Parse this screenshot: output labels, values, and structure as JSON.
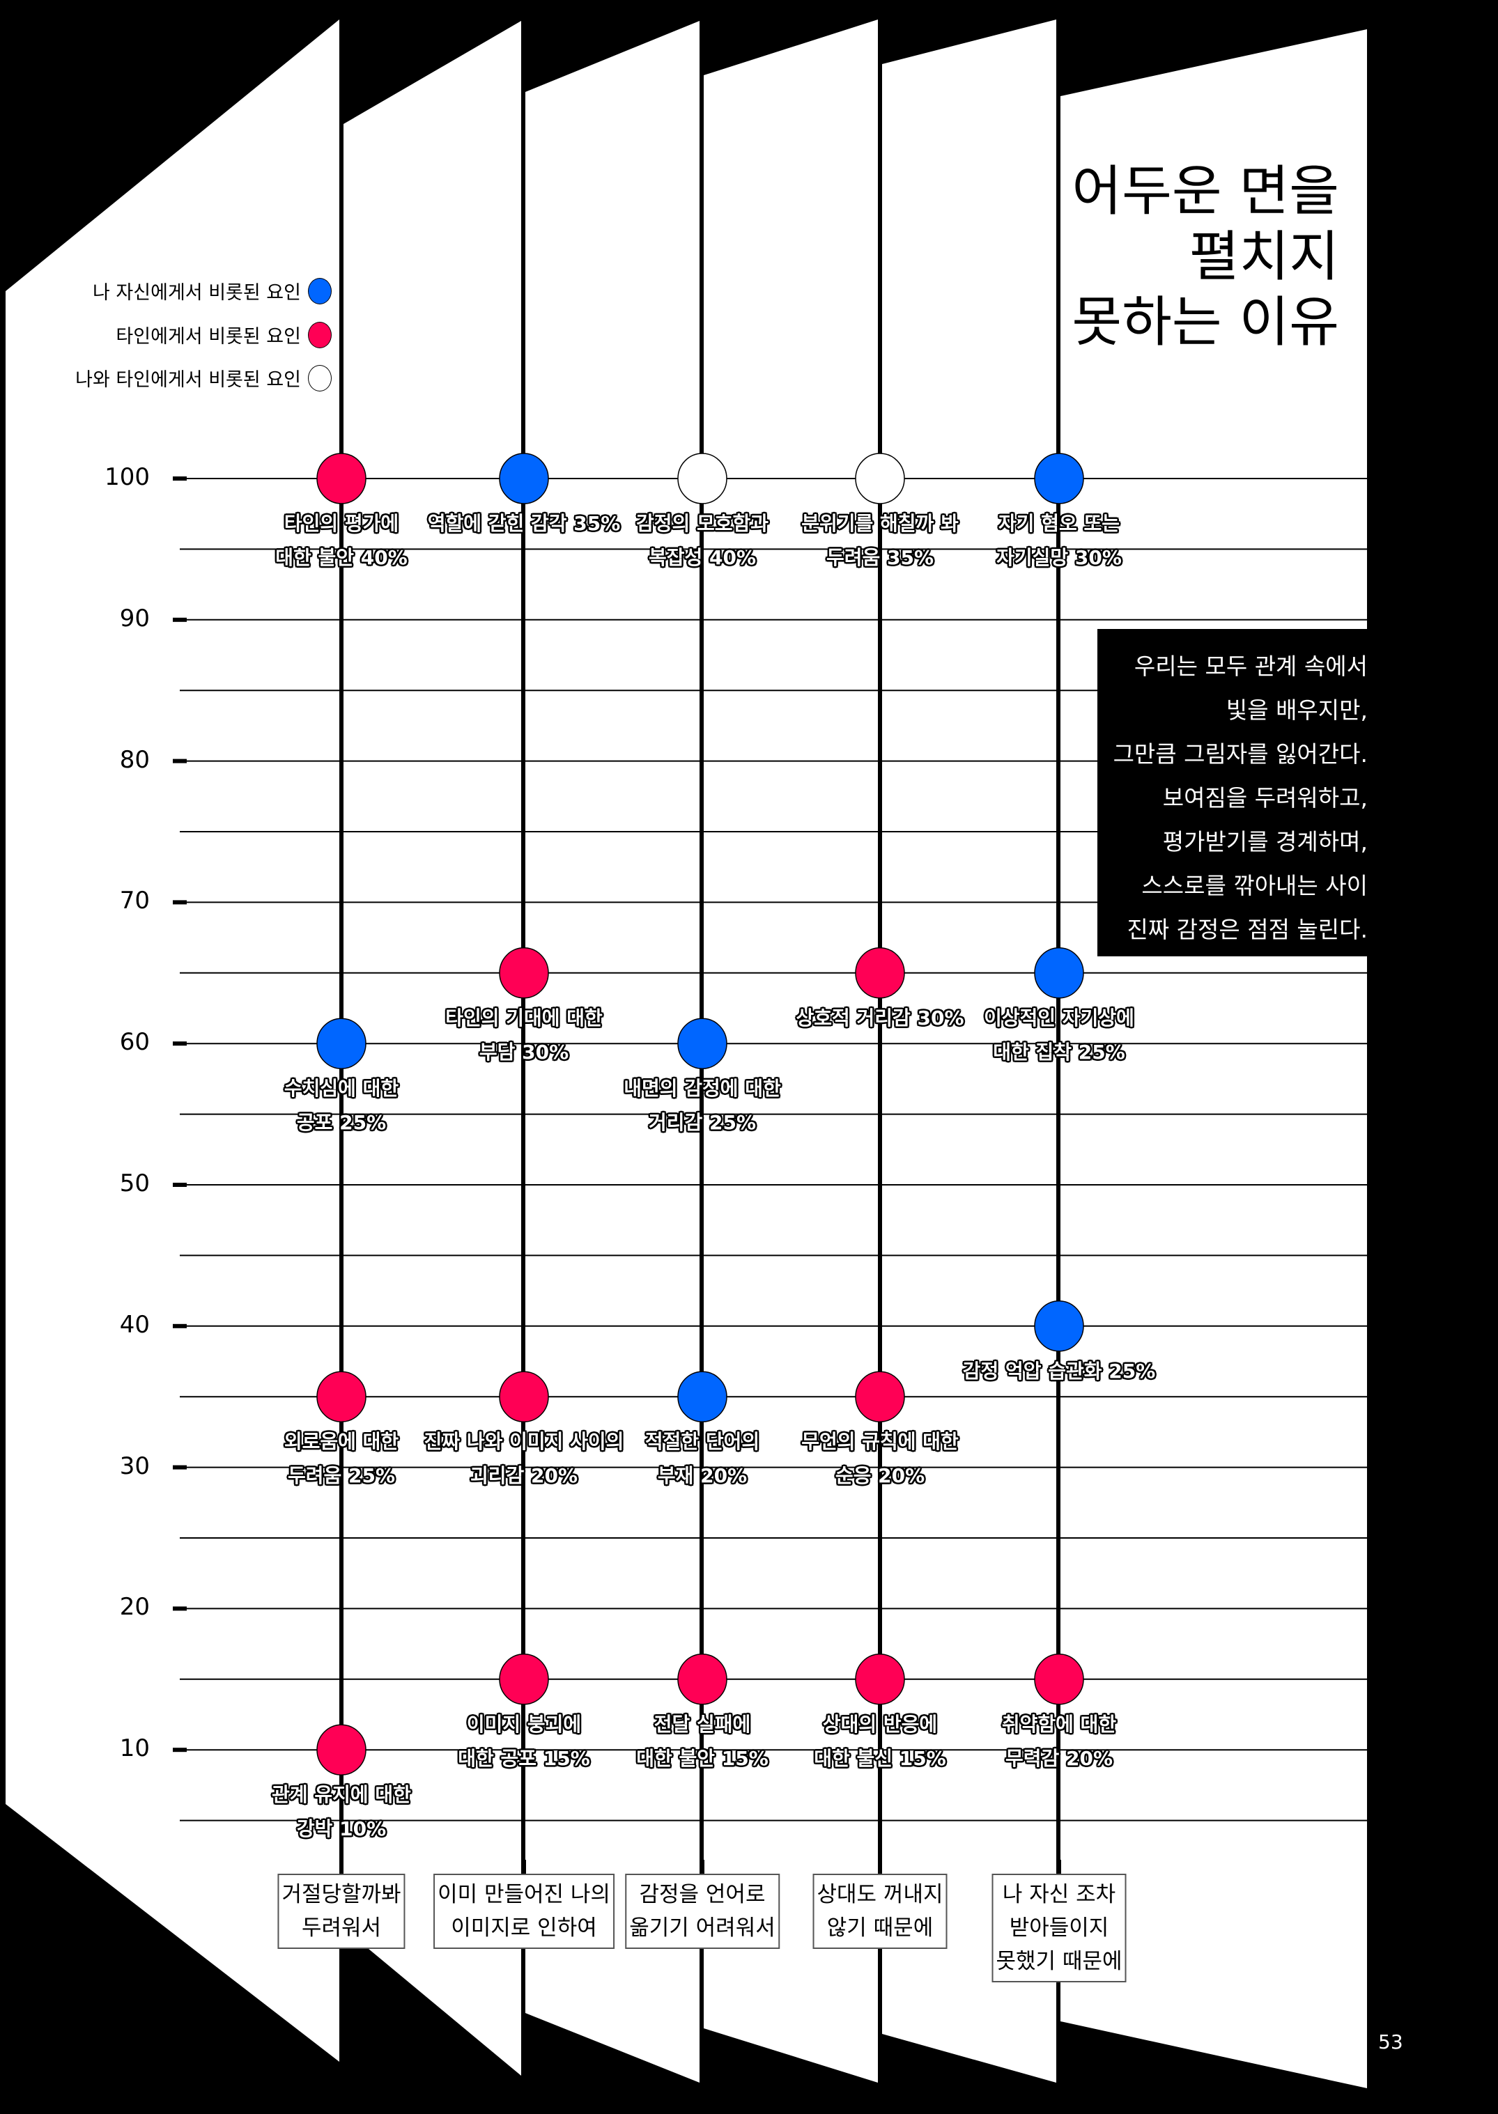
{
  "title": {
    "lines": [
      "어두운 면을",
      "펼치지",
      "못하는 이유"
    ]
  },
  "legend": {
    "items": [
      {
        "label": "나 자신에게서 비롯된 요인",
        "color": "#0066ff",
        "key": "self"
      },
      {
        "label": "타인에게서 비롯된 요인",
        "color": "#ff0055",
        "key": "others"
      },
      {
        "label": "나와 타인에게서 비롯된 요인",
        "color": "#ffffff",
        "key": "both"
      }
    ]
  },
  "quote": {
    "lines": [
      "우리는 모두 관계 속에서",
      "빛을 배우지만,",
      "그만큼 그림자를 잃어간다.",
      "보여짐을 두려워하고,",
      "평가받기를 경계하며,",
      "스스로를  깎아내는  사이",
      "진짜 감정은 점점 눌린다."
    ]
  },
  "y_axis": {
    "ticks": [
      "100",
      "90",
      "80",
      "70",
      "60",
      "50",
      "40",
      "30",
      "20",
      "10"
    ]
  },
  "page_number": "53",
  "colors": {
    "self": "#0066ff",
    "others": "#ff0055",
    "both": "#ffffff",
    "background": "#000000",
    "panel": "#ffffff"
  },
  "columns": [
    {
      "reason_lines": [
        "거절당할까봐",
        "두려워서"
      ],
      "points": [
        {
          "value": 100,
          "type": "others",
          "lines": [
            "타인의 평가에",
            "대한 불안 40%"
          ]
        },
        {
          "value": 60,
          "type": "self",
          "lines": [
            "수치심에 대한",
            "공포 25%"
          ]
        },
        {
          "value": 35,
          "type": "others",
          "lines": [
            "외로움에 대한",
            "두려움 25%"
          ]
        },
        {
          "value": 10,
          "type": "others",
          "lines": [
            "관계 유지에 대한",
            "강박 10%"
          ]
        }
      ]
    },
    {
      "reason_lines": [
        "이미 만들어진 나의",
        "이미지로 인하여"
      ],
      "points": [
        {
          "value": 100,
          "type": "self",
          "lines": [
            "역할에 갇힌 감각 35%"
          ]
        },
        {
          "value": 65,
          "type": "others",
          "lines": [
            "타인의 기대에 대한",
            "부담 30%"
          ]
        },
        {
          "value": 35,
          "type": "others",
          "lines": [
            "진짜 나와 이미지 사이의",
            "괴리감 20%"
          ]
        },
        {
          "value": 15,
          "type": "others",
          "lines": [
            "이미지 붕괴에",
            "대한 공포 15%"
          ]
        }
      ]
    },
    {
      "reason_lines": [
        "감정을  언어로",
        "옮기기 어려워서"
      ],
      "points": [
        {
          "value": 100,
          "type": "both",
          "lines": [
            "감정의 모호함과",
            "복잡성 40%"
          ]
        },
        {
          "value": 60,
          "type": "self",
          "lines": [
            "내면의 감정에 대한",
            "거리감 25%"
          ]
        },
        {
          "value": 35,
          "type": "self",
          "lines": [
            "적절한 단어의",
            "부재 20%"
          ]
        },
        {
          "value": 15,
          "type": "others",
          "lines": [
            "전달 실패에",
            "대한 불안 15%"
          ]
        }
      ]
    },
    {
      "reason_lines": [
        "상대도 꺼내지",
        "않기 때문에"
      ],
      "points": [
        {
          "value": 100,
          "type": "both",
          "lines": [
            "분위기를 해칠까 봐",
            "두려움 35%"
          ]
        },
        {
          "value": 65,
          "type": "others",
          "lines": [
            "상호적 거리감 30%"
          ]
        },
        {
          "value": 35,
          "type": "others",
          "lines": [
            "무언의 규칙에 대한",
            "순응 20%"
          ]
        },
        {
          "value": 15,
          "type": "others",
          "lines": [
            "상대의 반응에",
            "대한 불신 15%"
          ]
        }
      ]
    },
    {
      "reason_lines": [
        "나 자신 조차",
        "받아들이지",
        "못했기 때문에"
      ],
      "points": [
        {
          "value": 100,
          "type": "self",
          "lines": [
            "자기 혐오 또는",
            "자기실망 30%"
          ]
        },
        {
          "value": 65,
          "type": "self",
          "lines": [
            "이상적인 자기상에",
            "대한 집착 25%"
          ]
        },
        {
          "value": 40,
          "type": "self",
          "lines": [
            "감정 억압 습관화 25%"
          ]
        },
        {
          "value": 15,
          "type": "others",
          "lines": [
            "취약함에 대한",
            "무력감 20%"
          ]
        }
      ]
    }
  ],
  "chart_data": {
    "type": "scatter",
    "title": "어두운 면을 펼치지 못하는 이유",
    "xlabel": "",
    "ylabel": "",
    "ylim": [
      5,
      100
    ],
    "grid": true,
    "legend_position": "top-left",
    "legend": [
      "나 자신에게서 비롯된 요인",
      "타인에게서 비롯된 요인",
      "나와 타인에게서 비롯된 요인"
    ],
    "categories": [
      "거절당할까봐 두려워서",
      "이미 만들어진 나의 이미지로 인하여",
      "감정을 언어로 옮기기 어려워서",
      "상대도 꺼내지 않기 때문에",
      "나 자신 조차 받아들이지 못했기 때문에"
    ],
    "y_ticks": [
      100,
      90,
      80,
      70,
      60,
      50,
      40,
      30,
      20,
      10
    ],
    "series": [
      {
        "name": "나 자신에게서 비롯된 요인",
        "color": "#0066ff",
        "points": [
          {
            "category": "거절당할까봐 두려워서",
            "y": 60,
            "label": "수치심에 대한 공포",
            "percent": 25
          },
          {
            "category": "이미 만들어진 나의 이미지로 인하여",
            "y": 100,
            "label": "역할에 갇힌 감각",
            "percent": 35
          },
          {
            "category": "감정을 언어로 옮기기 어려워서",
            "y": 60,
            "label": "내면의 감정에 대한 거리감",
            "percent": 25
          },
          {
            "category": "감정을 언어로 옮기기 어려워서",
            "y": 35,
            "label": "적절한 단어의 부재",
            "percent": 20
          },
          {
            "category": "나 자신 조차 받아들이지 못했기 때문에",
            "y": 100,
            "label": "자기 혐오 또는 자기실망",
            "percent": 30
          },
          {
            "category": "나 자신 조차 받아들이지 못했기 때문에",
            "y": 65,
            "label": "이상적인 자기상에 대한 집착",
            "percent": 25
          },
          {
            "category": "나 자신 조차 받아들이지 못했기 때문에",
            "y": 40,
            "label": "감정 억압 습관화",
            "percent": 25
          }
        ]
      },
      {
        "name": "타인에게서 비롯된 요인",
        "color": "#ff0055",
        "points": [
          {
            "category": "거절당할까봐 두려워서",
            "y": 100,
            "label": "타인의 평가에 대한 불안",
            "percent": 40
          },
          {
            "category": "거절당할까봐 두려워서",
            "y": 35,
            "label": "외로움에 대한 두려움",
            "percent": 25
          },
          {
            "category": "거절당할까봐 두려워서",
            "y": 10,
            "label": "관계 유지에 대한 강박",
            "percent": 10
          },
          {
            "category": "이미 만들어진 나의 이미지로 인하여",
            "y": 65,
            "label": "타인의 기대에 대한 부담",
            "percent": 30
          },
          {
            "category": "이미 만들어진 나의 이미지로 인하여",
            "y": 35,
            "label": "진짜 나와 이미지 사이의 괴리감",
            "percent": 20
          },
          {
            "category": "이미 만들어진 나의 이미지로 인하여",
            "y": 15,
            "label": "이미지 붕괴에 대한 공포",
            "percent": 15
          },
          {
            "category": "감정을 언어로 옮기기 어려워서",
            "y": 15,
            "label": "전달 실패에 대한 불안",
            "percent": 15
          },
          {
            "category": "상대도 꺼내지 않기 때문에",
            "y": 65,
            "label": "상호적 거리감",
            "percent": 30
          },
          {
            "category": "상대도 꺼내지 않기 때문에",
            "y": 35,
            "label": "무언의 규칙에 대한 순응",
            "percent": 20
          },
          {
            "category": "상대도 꺼내지 않기 때문에",
            "y": 15,
            "label": "상대의 반응에 대한 불신",
            "percent": 15
          },
          {
            "category": "나 자신 조차 받아들이지 못했기 때문에",
            "y": 15,
            "label": "취약함에 대한 무력감",
            "percent": 20
          }
        ]
      },
      {
        "name": "나와 타인에게서 비롯된 요인",
        "color": "#ffffff",
        "points": [
          {
            "category": "감정을 언어로 옮기기 어려워서",
            "y": 100,
            "label": "감정의 모호함과 복잡성",
            "percent": 40
          },
          {
            "category": "상대도 꺼내지 않기 때문에",
            "y": 100,
            "label": "분위기를 해칠까 봐 두려움",
            "percent": 35
          }
        ]
      }
    ]
  }
}
